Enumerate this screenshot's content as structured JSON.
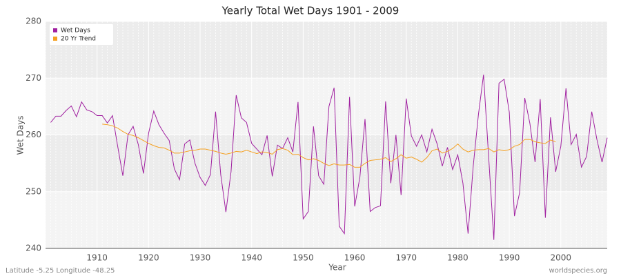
{
  "chart_data": {
    "type": "line",
    "title": "Yearly Total Wet Days 1901 - 2009",
    "x_label": "Year",
    "y_label": "Wet Days",
    "footer_left": "Latitude -5.25 Longitude -48.25",
    "footer_right": "worldspecies.org",
    "x": [
      1901,
      1902,
      1903,
      1904,
      1905,
      1906,
      1907,
      1908,
      1909,
      1910,
      1911,
      1912,
      1913,
      1914,
      1915,
      1916,
      1917,
      1918,
      1919,
      1920,
      1921,
      1922,
      1923,
      1924,
      1925,
      1926,
      1927,
      1928,
      1929,
      1930,
      1931,
      1932,
      1933,
      1934,
      1935,
      1936,
      1937,
      1938,
      1939,
      1940,
      1941,
      1942,
      1943,
      1944,
      1945,
      1946,
      1947,
      1948,
      1949,
      1950,
      1951,
      1952,
      1953,
      1954,
      1955,
      1956,
      1957,
      1958,
      1959,
      1960,
      1961,
      1962,
      1963,
      1964,
      1965,
      1966,
      1967,
      1968,
      1969,
      1970,
      1971,
      1972,
      1973,
      1974,
      1975,
      1976,
      1977,
      1978,
      1979,
      1980,
      1981,
      1982,
      1983,
      1984,
      1985,
      1986,
      1987,
      1988,
      1989,
      1990,
      1991,
      1992,
      1993,
      1994,
      1995,
      1996,
      1997,
      1998,
      1999,
      2000,
      2001,
      2002,
      2003,
      2004,
      2005,
      2006,
      2007,
      2008,
      2009
    ],
    "series": [
      {
        "name": "Wet Days",
        "color": "#a020a0",
        "values": [
          262.2,
          263.3,
          263.3,
          264.3,
          265.1,
          263.2,
          265.8,
          264.4,
          264.1,
          263.4,
          263.4,
          262.1,
          263.4,
          258.0,
          252.8,
          260.0,
          261.5,
          258.3,
          253.2,
          260.3,
          264.2,
          261.8,
          260.3,
          259.0,
          254.0,
          252.1,
          258.4,
          259.1,
          255.0,
          252.5,
          251.1,
          253.0,
          264.1,
          253.0,
          246.4,
          253.5,
          267.0,
          263.0,
          262.2,
          258.5,
          257.5,
          256.5,
          259.9,
          252.7,
          258.2,
          257.6,
          259.5,
          257.0,
          265.8,
          245.2,
          246.5,
          261.5,
          252.8,
          251.3,
          265.0,
          268.3,
          243.9,
          242.6,
          266.7,
          247.4,
          252.5,
          262.8,
          246.5,
          247.2,
          247.5,
          265.9,
          251.5,
          260.0,
          249.4,
          266.4,
          259.8,
          258.0,
          260.0,
          257.0,
          261.0,
          258.4,
          254.5,
          257.8,
          253.9,
          256.5,
          251.5,
          242.6,
          254.5,
          263.5,
          270.6,
          256.0,
          241.5,
          269.1,
          269.8,
          264.0,
          245.7,
          249.8,
          266.5,
          262.0,
          255.2,
          266.3,
          245.4,
          263.1,
          253.5,
          258.0,
          268.2,
          258.3,
          260.1,
          254.3,
          256.2,
          264.1,
          259.2,
          255.2,
          259.5
        ]
      },
      {
        "name": "20 Yr Trend",
        "color": "#f5a020",
        "values": [
          null,
          null,
          null,
          null,
          null,
          null,
          null,
          null,
          null,
          null,
          261.9,
          261.8,
          261.6,
          261.2,
          260.6,
          260.1,
          259.9,
          259.5,
          259.0,
          258.5,
          258.1,
          257.8,
          257.7,
          257.3,
          256.8,
          256.8,
          257.0,
          257.2,
          257.3,
          257.5,
          257.5,
          257.3,
          257.1,
          256.8,
          256.6,
          256.8,
          257.1,
          257.0,
          257.3,
          257.0,
          256.7,
          257.0,
          256.9,
          256.6,
          257.4,
          257.6,
          257.3,
          256.5,
          256.6,
          256.0,
          255.6,
          255.8,
          255.5,
          255.0,
          254.6,
          254.9,
          254.7,
          254.7,
          254.8,
          254.3,
          254.3,
          255.0,
          255.5,
          255.6,
          255.7,
          256.0,
          255.3,
          255.8,
          256.5,
          255.9,
          256.1,
          255.7,
          255.2,
          256.0,
          257.2,
          257.5,
          256.8,
          257.1,
          257.6,
          258.4,
          257.5,
          257.0,
          257.3,
          257.4,
          257.4,
          257.6,
          257.0,
          257.4,
          257.2,
          257.4,
          258.0,
          258.3,
          259.2,
          259.2,
          258.8,
          258.6,
          258.5,
          259.1,
          258.8,
          null,
          null,
          null,
          null,
          null,
          null,
          null,
          null,
          null,
          null
        ]
      }
    ],
    "xlim": [
      1900,
      2009
    ],
    "ylim": [
      240,
      280
    ],
    "xticks": [
      1910,
      1920,
      1930,
      1940,
      1950,
      1960,
      1970,
      1980,
      1990,
      2000
    ],
    "yticks": [
      240,
      250,
      260,
      270,
      280
    ],
    "grid": true,
    "legend": "top-left"
  }
}
